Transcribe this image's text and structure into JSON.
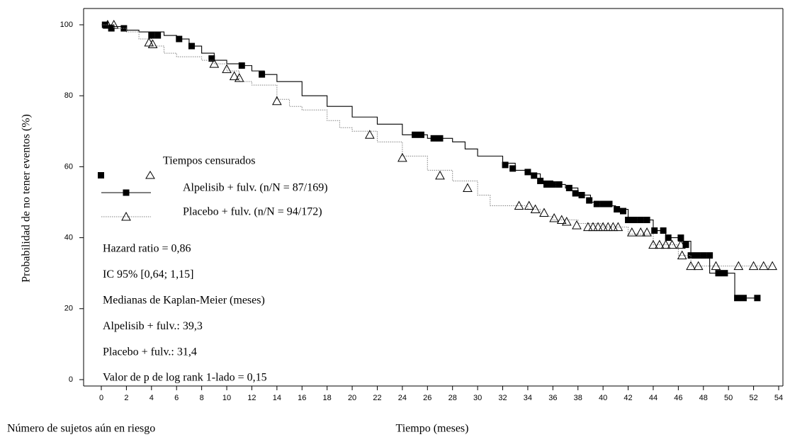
{
  "chart_data": {
    "type": "line",
    "step": true,
    "y_label": "Probabilidad de no tener eventos (%)",
    "x_label": "Tiempo (meses)",
    "risk_label": "Número de sujetos aún en riesgo",
    "legend_title": "Tiempos censurados",
    "xlim": [
      0,
      54
    ],
    "ylim": [
      0,
      100
    ],
    "xticks": [
      0,
      2,
      4,
      6,
      8,
      10,
      12,
      14,
      16,
      18,
      20,
      22,
      24,
      26,
      28,
      30,
      32,
      34,
      36,
      38,
      40,
      42,
      44,
      46,
      48,
      50,
      52,
      54
    ],
    "yticks": [
      0,
      20,
      40,
      60,
      80,
      100
    ],
    "annotations": [
      "Hazard ratio = 0,86",
      "IC 95% [0,64; 1,15]",
      "Medianas de Kaplan-Meier (meses)",
      "Alpelisib + fulv.: 39,3",
      "Placebo + fulv.: 31,4",
      "Valor de p de log rank 1-lado = 0,15"
    ],
    "series": [
      {
        "name": "Alpelisib + fulv. (n/N = 87/169)",
        "color": "#000000",
        "dash": false,
        "marker": "square",
        "x": [
          0,
          1,
          2,
          3,
          5,
          6,
          7,
          8,
          9,
          10,
          11,
          12,
          13,
          14,
          16,
          18,
          20,
          22,
          24,
          26,
          28,
          29,
          30,
          32,
          33,
          34,
          35,
          36,
          37,
          38,
          39,
          40,
          41,
          42,
          43,
          44,
          45,
          46,
          47,
          48,
          48.5,
          50,
          50.5,
          52.3
        ],
        "values": [
          100,
          99.5,
          98.5,
          98,
          97,
          96,
          94,
          92,
          90,
          89,
          88.5,
          87,
          86,
          84,
          80,
          77,
          74,
          72,
          69,
          68,
          67,
          65,
          63,
          61,
          59,
          58,
          56,
          55,
          54,
          52,
          50,
          49,
          48,
          45,
          45,
          42,
          40,
          39,
          35,
          35,
          30,
          30,
          23,
          23
        ],
        "censored": {
          "x": [
            0.3,
            0.8,
            1.8,
            4,
            4.5,
            6.2,
            7.2,
            8.8,
            11.2,
            12.8,
            25,
            25.5,
            26.5,
            27,
            32.2,
            32.8,
            34,
            34.5,
            35,
            35.5,
            36,
            36.5,
            37.3,
            37.8,
            38.3,
            38.9,
            39.5,
            40,
            40.5,
            41.1,
            41.6,
            42,
            42.5,
            43,
            43.5,
            44.1,
            44.8,
            45.2,
            46.2,
            46.6,
            47,
            47.5,
            48,
            48.5,
            49.2,
            49.7,
            50.7,
            51.2,
            52.3
          ],
          "values": [
            100,
            99,
            99,
            97,
            97,
            96,
            94,
            90.5,
            88.5,
            86,
            69,
            69,
            68,
            68,
            60.5,
            59.5,
            58.5,
            57.5,
            56,
            55,
            55,
            55,
            54,
            52.5,
            52,
            50.5,
            49.5,
            49.5,
            49.5,
            48,
            47.5,
            45,
            45,
            45,
            45,
            42,
            42,
            40,
            40,
            38,
            35,
            35,
            35,
            35,
            30,
            30,
            23,
            23,
            23
          ]
        }
      },
      {
        "name": "Placebo + fulv. (n/N = 94/172)",
        "color": "#808080",
        "dash": true,
        "marker": "triangle",
        "x": [
          0,
          1,
          2,
          3,
          4,
          5,
          6,
          8,
          9,
          10,
          11,
          12,
          14,
          15,
          16,
          18,
          19,
          20,
          22,
          24,
          26,
          28,
          30,
          31,
          32,
          34,
          35,
          36,
          38,
          40,
          42,
          44,
          46,
          47,
          49,
          53.5
        ],
        "values": [
          100,
          99,
          98,
          96,
          94,
          92,
          91,
          90,
          89,
          87,
          84,
          83,
          79,
          77,
          76,
          73,
          71,
          70,
          67,
          63,
          59,
          56,
          52,
          49,
          49,
          48,
          46,
          45,
          44,
          43,
          41,
          38,
          35,
          32,
          32,
          32
        ],
        "censored": {
          "x": [
            0.5,
            1,
            3.8,
            4.1,
            9,
            10,
            10.6,
            11,
            14,
            21.4,
            24,
            27,
            29.2,
            33.3,
            34.1,
            34.6,
            35.3,
            36.1,
            36.7,
            37.1,
            37.9,
            38.8,
            39.2,
            39.6,
            40,
            40.4,
            40.8,
            41.2,
            42.3,
            43,
            43.5,
            44,
            44.5,
            45,
            45.5,
            46.2,
            46.3,
            47,
            47.6,
            49,
            50.8,
            52,
            52.8,
            53.5
          ],
          "values": [
            100,
            100,
            95,
            94.5,
            89,
            87.5,
            85.5,
            85,
            78.5,
            69,
            62.5,
            57.5,
            54,
            49,
            49,
            48,
            47,
            45.5,
            45,
            44.5,
            43.5,
            43,
            43,
            43,
            43,
            43,
            43,
            43,
            41.5,
            41.5,
            41.5,
            38,
            38,
            38,
            38,
            38,
            35,
            32,
            32,
            32,
            32,
            32,
            32,
            32
          ]
        }
      }
    ]
  }
}
